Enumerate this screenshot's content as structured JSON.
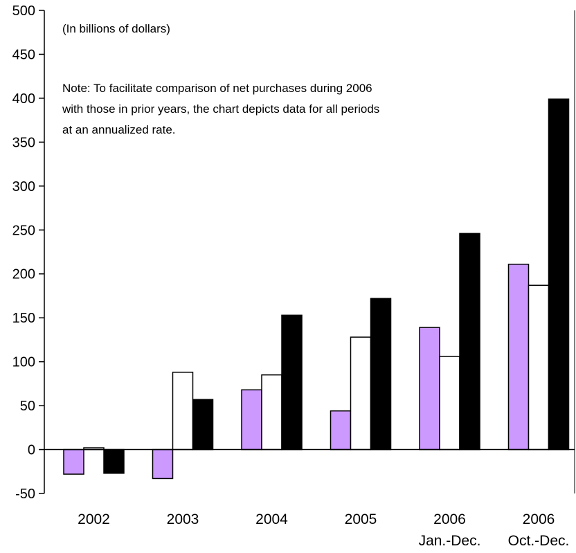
{
  "chart_data": {
    "type": "bar",
    "subtitle": "(In billions of dollars)",
    "note": [
      "Note: To facilitate comparison of net purchases during 2006",
      "with those in prior years, the chart depicts data for all periods",
      "at an annualized rate."
    ],
    "categories": [
      [
        "2002"
      ],
      [
        "2003"
      ],
      [
        "2004"
      ],
      [
        "2005"
      ],
      [
        "2006",
        "Jan.-Dec."
      ],
      [
        "2006",
        "Oct.-Dec."
      ]
    ],
    "series": [
      {
        "color": "#cc99ff",
        "values": [
          -28,
          -33,
          68,
          44,
          139,
          211
        ]
      },
      {
        "color": "#ffffff",
        "values": [
          2,
          88,
          85,
          128,
          106,
          187
        ]
      },
      {
        "color": "#000000",
        "values": [
          -27,
          57,
          153,
          172,
          246,
          399
        ]
      }
    ],
    "ylim": [
      -50,
      500
    ],
    "yticks": [
      -50,
      0,
      50,
      100,
      150,
      200,
      250,
      300,
      350,
      400,
      450,
      500
    ],
    "grid": false
  }
}
